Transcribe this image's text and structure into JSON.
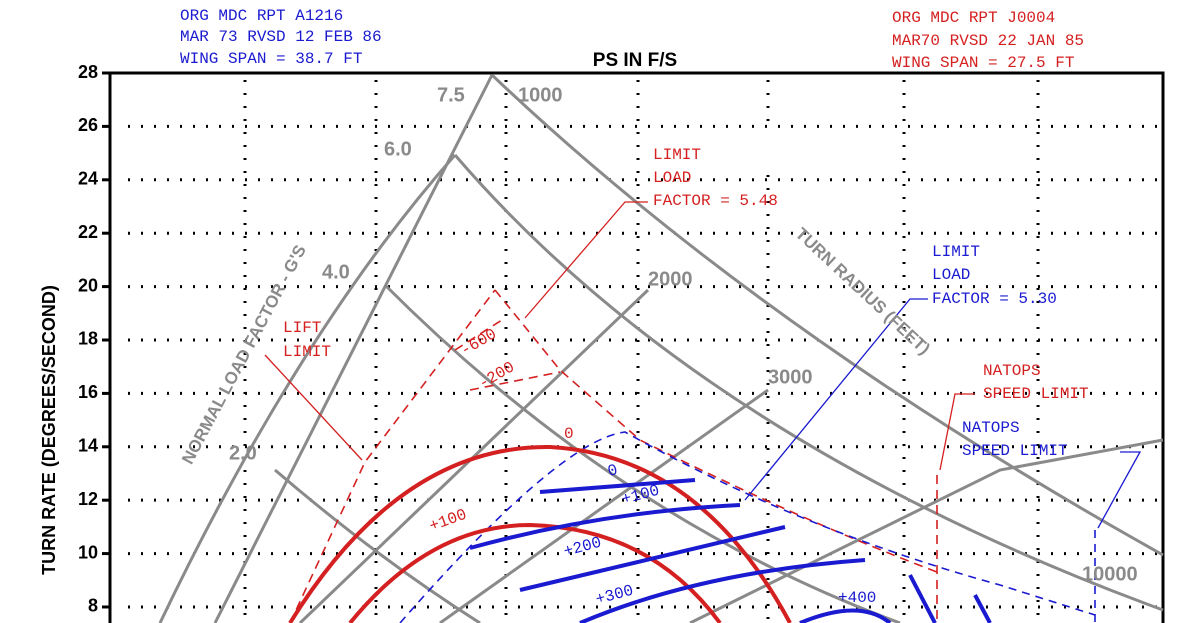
{
  "chart_data": {
    "type": "line",
    "title": "PS IN F/S",
    "y_label": "TURN RATE (DEGREES/SECOND)",
    "ylim": [
      7.4,
      28
    ],
    "yticks": [
      8,
      10,
      12,
      14,
      16,
      18,
      20,
      22,
      24,
      26,
      28
    ],
    "grid": true,
    "header_left": [
      "ORG MDC RPT A1216",
      "MAR 73 RVSD 12 FEB 86",
      "WING SPAN = 38.7 FT"
    ],
    "header_right": [
      "ORG MDC RPT J0004",
      "MAR70 RVSD 22 JAN 85",
      "WING SPAN = 27.5 FT"
    ],
    "load_factor_label": "NORMAL LOAD FACTOR - G'S",
    "load_factor_values": [
      "7.5",
      "6.0",
      "4.0",
      "2.0"
    ],
    "turn_radius_label": "TURN RADIUS (FEET)",
    "turn_radius_values": [
      1000,
      2000,
      3000,
      10000
    ],
    "limit_load_red": [
      "LIMIT",
      "LOAD",
      "FACTOR = 5.48"
    ],
    "limit_load_blue": [
      "LIMIT",
      "LOAD",
      "FACTOR = 5.30"
    ],
    "lift_limit": [
      "LIFT",
      "LIMIT"
    ],
    "natops_red": [
      "NATOPS",
      "SPEED LIMIT"
    ],
    "natops_blue": [
      "NATOPS",
      "SPEED LIMIT"
    ],
    "ps_red": [
      "-600",
      "-200",
      "0",
      "+100"
    ],
    "ps_blue": [
      "0",
      "+100",
      "+200",
      "+300",
      "+400"
    ]
  }
}
